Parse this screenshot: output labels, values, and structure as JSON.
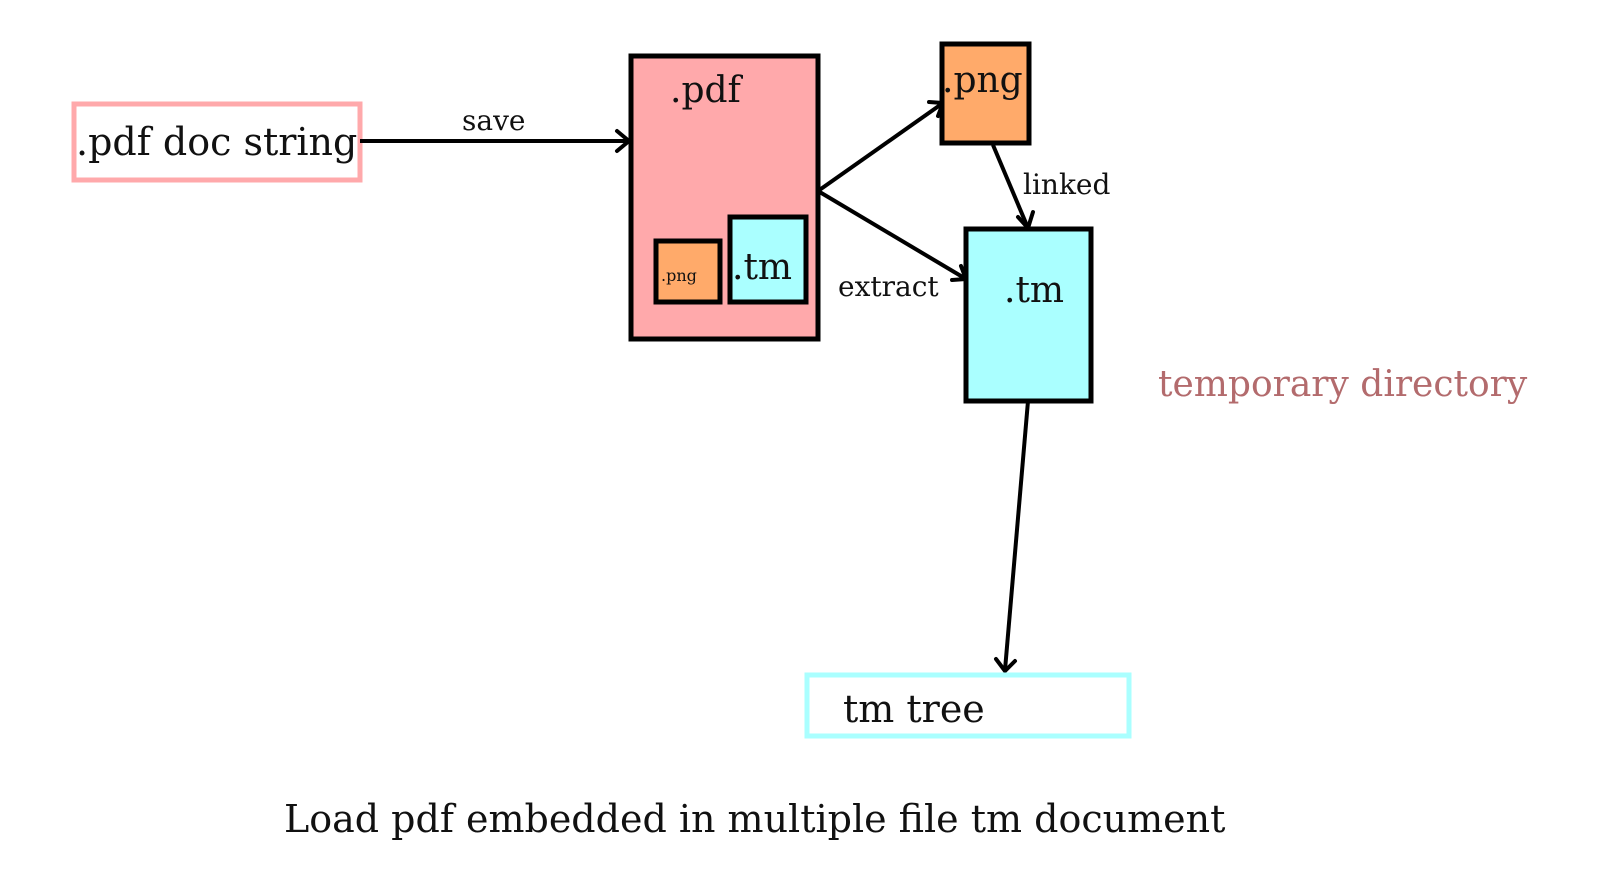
{
  "colors": {
    "pdf_string_border": "#ffa9ab",
    "pdf_fill": "#ffa9ab",
    "png_fill": "#ffaa6a",
    "tm_fill": "#aaffff",
    "tm_tree_border": "#aaffff",
    "temp_dir_text": "#b36b6d"
  },
  "nodes": {
    "pdf_doc_string": ".pdf doc string",
    "pdf_file": ".pdf",
    "embedded_png": ".png",
    "embedded_tm": ".tm",
    "png_file": ".png",
    "tm_file": ".tm",
    "tm_tree": "tm tree"
  },
  "edges": {
    "save": "save",
    "extract": "extract",
    "linked": "linked"
  },
  "region_label": "temporary directory",
  "caption": "Load pdf embedded in multiple file tm document"
}
